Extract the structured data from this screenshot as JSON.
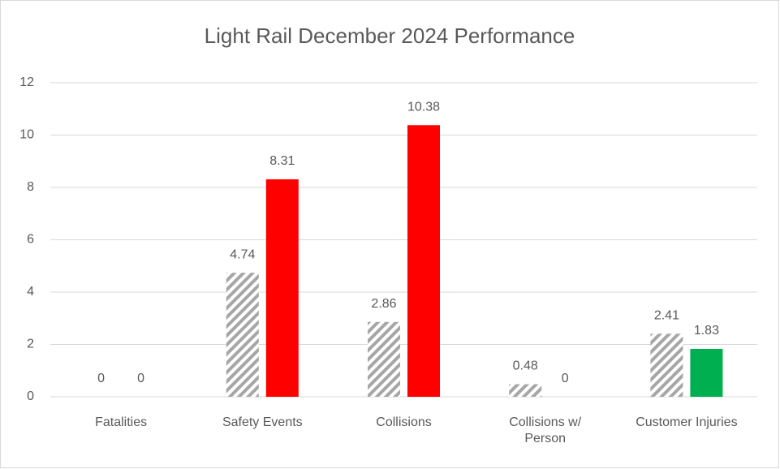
{
  "chart_data": {
    "type": "bar",
    "title": "Light Rail December 2024 Performance",
    "categories": [
      "Fatalities",
      "Safety Events",
      "Collisions",
      "Collisions w/ Person",
      "Customer Injuries"
    ],
    "series": [
      {
        "color": "#a6a6a6",
        "pattern": "hatch",
        "values": [
          0,
          4.74,
          2.86,
          0.48,
          2.41
        ]
      },
      {
        "colors": [
          "#ff0000",
          "#ff0000",
          "#ff0000",
          "#ff0000",
          "#00b050"
        ],
        "values": [
          0,
          8.31,
          10.38,
          0,
          1.83
        ]
      }
    ],
    "ylim": [
      0,
      12
    ],
    "yticks": [
      0,
      2,
      4,
      6,
      8,
      10,
      12
    ],
    "grid": true
  }
}
